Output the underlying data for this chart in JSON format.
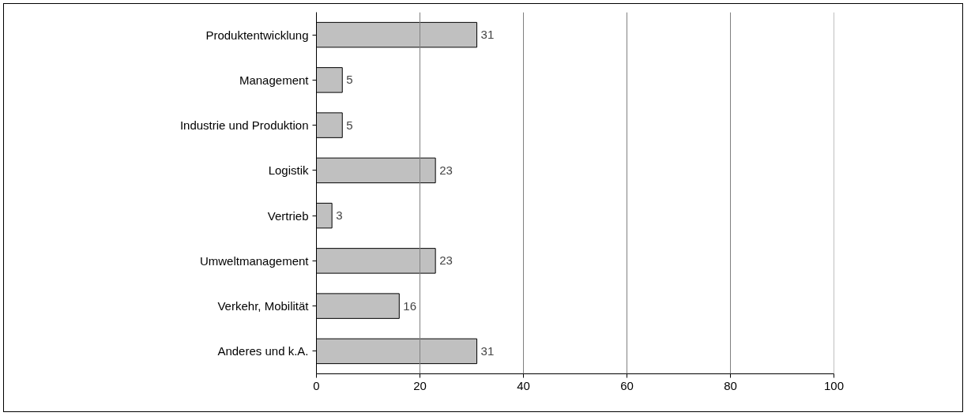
{
  "chart_data": {
    "type": "bar",
    "orientation": "horizontal",
    "categories": [
      "Produktentwicklung",
      "Management",
      "Industrie und Produktion",
      "Logistik",
      "Vertrieb",
      "Umweltmanagement",
      "Verkehr, Mobilität",
      "Anderes und k.A."
    ],
    "values": [
      31,
      5,
      5,
      23,
      3,
      23,
      16,
      31
    ],
    "color": "#c0c0c0",
    "xlim": [
      0,
      100
    ],
    "xticks": [
      0,
      20,
      40,
      60,
      80,
      100
    ],
    "grid": "x",
    "data_labels": true
  }
}
